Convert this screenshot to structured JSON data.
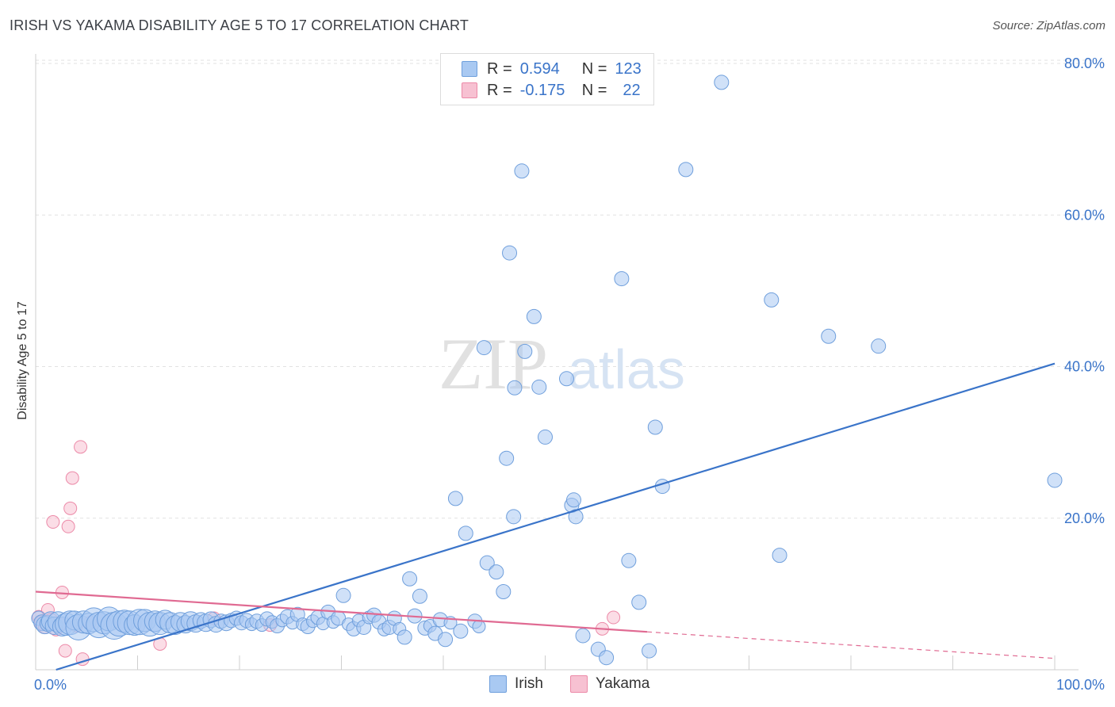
{
  "header": {
    "title": "IRISH VS YAKAMA DISABILITY AGE 5 TO 17 CORRELATION CHART",
    "source": "Source: ZipAtlas.com"
  },
  "legend": {
    "rows": [
      {
        "r_label": "R =",
        "r_value": "0.594",
        "n_label": "N =",
        "n_value": "123"
      },
      {
        "r_label": "R =",
        "r_value": "-0.175",
        "n_label": "N =",
        "n_value": "22"
      }
    ]
  },
  "watermark": {
    "zip": "ZIP",
    "atlas": "atlas"
  },
  "colors": {
    "irish_fill": "#a9c9f2",
    "irish_stroke": "#6f9fdc",
    "irish_line": "#3a74c9",
    "yakama_fill": "#f7c1d2",
    "yakama_stroke": "#ec8aa8",
    "yakama_line": "#e06a92",
    "axis_label": "#3a74c9",
    "grid": "#e2e2e2"
  },
  "chart_data": {
    "type": "scatter",
    "title": "IRISH VS YAKAMA DISABILITY AGE 5 TO 17 CORRELATION CHART",
    "xlabel": "",
    "ylabel": "Disability Age 5 to 17",
    "xlim": [
      0,
      100
    ],
    "ylim": [
      0,
      80
    ],
    "x_tick_labels": [
      "0.0%",
      "100.0%"
    ],
    "y_ticks": [
      20,
      40,
      60,
      80
    ],
    "y_tick_labels": [
      "20.0%",
      "40.0%",
      "60.0%",
      "80.0%"
    ],
    "legend_position": "bottom",
    "series": [
      {
        "name": "Irish",
        "trend": {
          "x": [
            2,
            100
          ],
          "y": [
            0,
            40.4
          ]
        },
        "points": [
          [
            0.3,
            6.8,
            9
          ],
          [
            0.6,
            6.2,
            10
          ],
          [
            0.9,
            5.9,
            11
          ],
          [
            1.2,
            6.1,
            10
          ],
          [
            1.5,
            6.4,
            12
          ],
          [
            1.8,
            5.8,
            11
          ],
          [
            2.2,
            6.3,
            13
          ],
          [
            2.6,
            5.7,
            12
          ],
          [
            3.0,
            6.0,
            14
          ],
          [
            3.4,
            6.2,
            15
          ],
          [
            3.8,
            6.5,
            12
          ],
          [
            4.2,
            5.6,
            16
          ],
          [
            4.7,
            6.3,
            14
          ],
          [
            5.2,
            6.1,
            13
          ],
          [
            5.7,
            6.6,
            15
          ],
          [
            6.2,
            5.9,
            16
          ],
          [
            6.7,
            6.2,
            14
          ],
          [
            7.2,
            6.7,
            15
          ],
          [
            7.7,
            5.8,
            17
          ],
          [
            8.2,
            6.1,
            16
          ],
          [
            8.7,
            6.4,
            14
          ],
          [
            9.2,
            6.2,
            15
          ],
          [
            9.7,
            5.9,
            13
          ],
          [
            10.2,
            6.3,
            16
          ],
          [
            10.7,
            6.5,
            14
          ],
          [
            11.2,
            6.0,
            15
          ],
          [
            11.7,
            6.4,
            13
          ],
          [
            12.2,
            6.1,
            14
          ],
          [
            12.7,
            6.6,
            12
          ],
          [
            13.2,
            6.2,
            13
          ],
          [
            13.7,
            5.9,
            12
          ],
          [
            14.2,
            6.3,
            12
          ],
          [
            14.7,
            6.0,
            11
          ],
          [
            15.2,
            6.4,
            12
          ],
          [
            15.7,
            6.1,
            11
          ],
          [
            16.2,
            6.5,
            10
          ],
          [
            16.7,
            6.2,
            11
          ],
          [
            17.2,
            6.6,
            10
          ],
          [
            17.7,
            6.0,
            10
          ],
          [
            18.2,
            6.4,
            9
          ],
          [
            18.7,
            6.2,
            10
          ],
          [
            19.2,
            6.5,
            9
          ],
          [
            19.7,
            6.8,
            9
          ],
          [
            20.2,
            6.2,
            9
          ],
          [
            20.7,
            6.5,
            9
          ],
          [
            21.2,
            6.0,
            8
          ],
          [
            21.7,
            6.4,
            9
          ],
          [
            22.2,
            5.9,
            8
          ],
          [
            22.7,
            6.7,
            9
          ],
          [
            23.2,
            6.3,
            8
          ],
          [
            23.7,
            5.8,
            9
          ],
          [
            24.2,
            6.5,
            8
          ],
          [
            24.7,
            7.0,
            9
          ],
          [
            25.2,
            6.2,
            8
          ],
          [
            25.7,
            7.3,
            9
          ],
          [
            26.2,
            6.0,
            8
          ],
          [
            26.7,
            5.7,
            9
          ],
          [
            27.2,
            6.4,
            8
          ],
          [
            27.7,
            6.9,
            9
          ],
          [
            28.2,
            6.1,
            8
          ],
          [
            28.7,
            7.6,
            9
          ],
          [
            29.2,
            6.3,
            8
          ],
          [
            29.7,
            6.8,
            9
          ],
          [
            30.2,
            9.8,
            9
          ],
          [
            30.7,
            6.0,
            8
          ],
          [
            31.2,
            5.4,
            9
          ],
          [
            31.7,
            6.5,
            8
          ],
          [
            32.2,
            5.6,
            9
          ],
          [
            32.7,
            6.9,
            8
          ],
          [
            33.2,
            7.2,
            9
          ],
          [
            33.7,
            6.3,
            9
          ],
          [
            34.2,
            5.3,
            8
          ],
          [
            34.7,
            5.6,
            9
          ],
          [
            35.2,
            6.8,
            9
          ],
          [
            35.7,
            5.4,
            8
          ],
          [
            36.2,
            4.3,
            9
          ],
          [
            36.7,
            12.0,
            9
          ],
          [
            37.2,
            7.1,
            9
          ],
          [
            37.7,
            9.7,
            9
          ],
          [
            38.2,
            5.5,
            9
          ],
          [
            38.7,
            5.8,
            8
          ],
          [
            39.2,
            4.8,
            9
          ],
          [
            39.7,
            6.6,
            9
          ],
          [
            40.2,
            4.0,
            9
          ],
          [
            40.7,
            6.2,
            8
          ],
          [
            41.2,
            22.6,
            9
          ],
          [
            41.7,
            5.1,
            9
          ],
          [
            42.2,
            18.0,
            9
          ],
          [
            43.1,
            6.4,
            9
          ],
          [
            43.5,
            5.7,
            8
          ],
          [
            44.0,
            42.5,
            9
          ],
          [
            44.3,
            14.1,
            9
          ],
          [
            45.2,
            12.9,
            9
          ],
          [
            45.9,
            10.3,
            9
          ],
          [
            46.2,
            27.9,
            9
          ],
          [
            46.9,
            20.2,
            9
          ],
          [
            47.0,
            37.2,
            9
          ],
          [
            47.7,
            65.8,
            9
          ],
          [
            48.9,
            46.6,
            9
          ],
          [
            49.4,
            37.3,
            9
          ],
          [
            50.0,
            30.7,
            9
          ],
          [
            52.6,
            21.7,
            9
          ],
          [
            52.8,
            22.4,
            9
          ],
          [
            53.0,
            20.2,
            9
          ],
          [
            53.7,
            4.5,
            9
          ],
          [
            55.2,
            2.7,
            9
          ],
          [
            56.0,
            1.6,
            9
          ],
          [
            57.5,
            51.6,
            9
          ],
          [
            58.2,
            14.4,
            9
          ],
          [
            59.2,
            8.9,
            9
          ],
          [
            60.2,
            2.5,
            9
          ],
          [
            60.8,
            32.0,
            9
          ],
          [
            61.5,
            24.2,
            9
          ],
          [
            63.8,
            66.0,
            9
          ],
          [
            67.3,
            77.5,
            9
          ],
          [
            72.2,
            48.8,
            9
          ],
          [
            73.0,
            15.1,
            9
          ],
          [
            77.8,
            44.0,
            9
          ],
          [
            82.7,
            42.7,
            9
          ],
          [
            100,
            25.0,
            9
          ],
          [
            46.5,
            55.0,
            9
          ],
          [
            48.0,
            42.0,
            9
          ],
          [
            52.1,
            38.4,
            9
          ]
        ]
      },
      {
        "name": "Yakama",
        "trend": {
          "x": [
            0,
            60
          ],
          "y": [
            10.3,
            5.0
          ]
        },
        "trend_dashed": {
          "x": [
            60,
            100
          ],
          "y": [
            5.0,
            1.5
          ]
        },
        "points": [
          [
            0.3,
            7.0,
            8
          ],
          [
            0.6,
            6.2,
            9
          ],
          [
            0.9,
            5.6,
            8
          ],
          [
            1.2,
            7.9,
            8
          ],
          [
            1.5,
            6.5,
            9
          ],
          [
            1.7,
            19.5,
            8
          ],
          [
            2.0,
            5.3,
            8
          ],
          [
            2.4,
            6.0,
            8
          ],
          [
            2.6,
            10.2,
            8
          ],
          [
            2.9,
            2.5,
            8
          ],
          [
            3.2,
            18.9,
            8
          ],
          [
            3.4,
            21.3,
            8
          ],
          [
            3.6,
            25.3,
            8
          ],
          [
            4.0,
            5.8,
            8
          ],
          [
            4.4,
            29.4,
            8
          ],
          [
            4.6,
            1.4,
            8
          ],
          [
            5.3,
            6.2,
            8
          ],
          [
            12.2,
            3.4,
            8
          ],
          [
            17.5,
            6.8,
            8
          ],
          [
            23.0,
            5.9,
            8
          ],
          [
            55.6,
            5.4,
            8
          ],
          [
            56.7,
            6.9,
            8
          ]
        ]
      }
    ]
  }
}
